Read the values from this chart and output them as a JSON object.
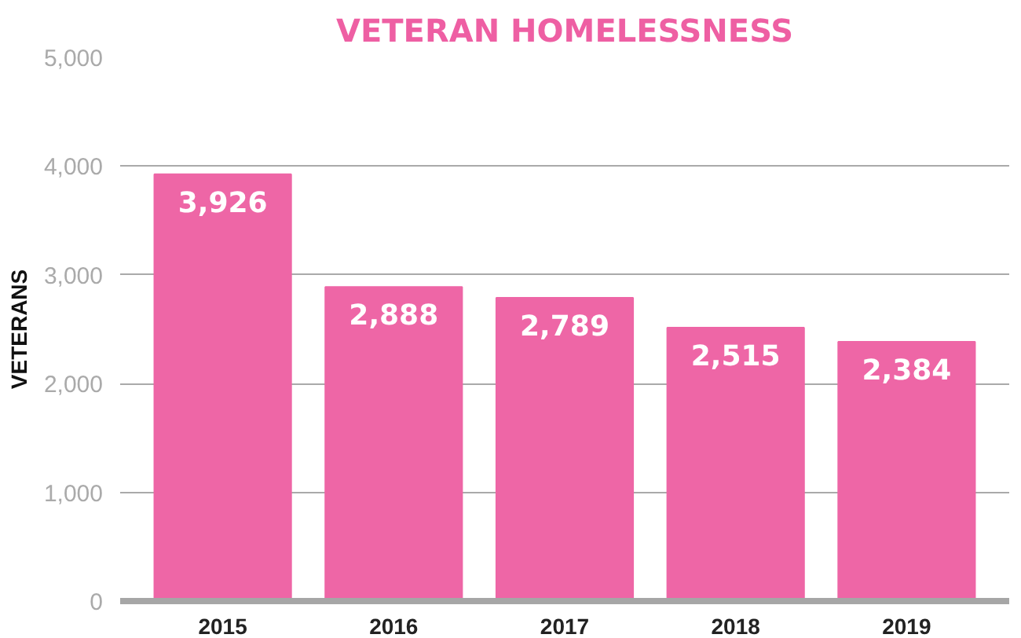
{
  "chart_data": {
    "type": "bar",
    "title": "VETERAN HOMELESSNESS",
    "ylabel": "VETERANS",
    "categories": [
      "2015",
      "2016",
      "2017",
      "2018",
      "2019"
    ],
    "values": [
      3926,
      2888,
      2789,
      2515,
      2384
    ],
    "color": "#ee66a6",
    "ylim": [
      0,
      5000
    ],
    "yticks": [
      0,
      {
        "value": 1000,
        "label": "1,000"
      },
      {
        "value": 2000,
        "label": "2,000"
      },
      {
        "value": 3000,
        "label": "3,000"
      },
      {
        "value": 4000,
        "label": "4,000"
      },
      {
        "value": 5000,
        "label": "5,000"
      }
    ],
    "value_labels": [
      "3,926",
      "2,888",
      "2,789",
      "2,515",
      "2,384"
    ],
    "grid": "y"
  }
}
